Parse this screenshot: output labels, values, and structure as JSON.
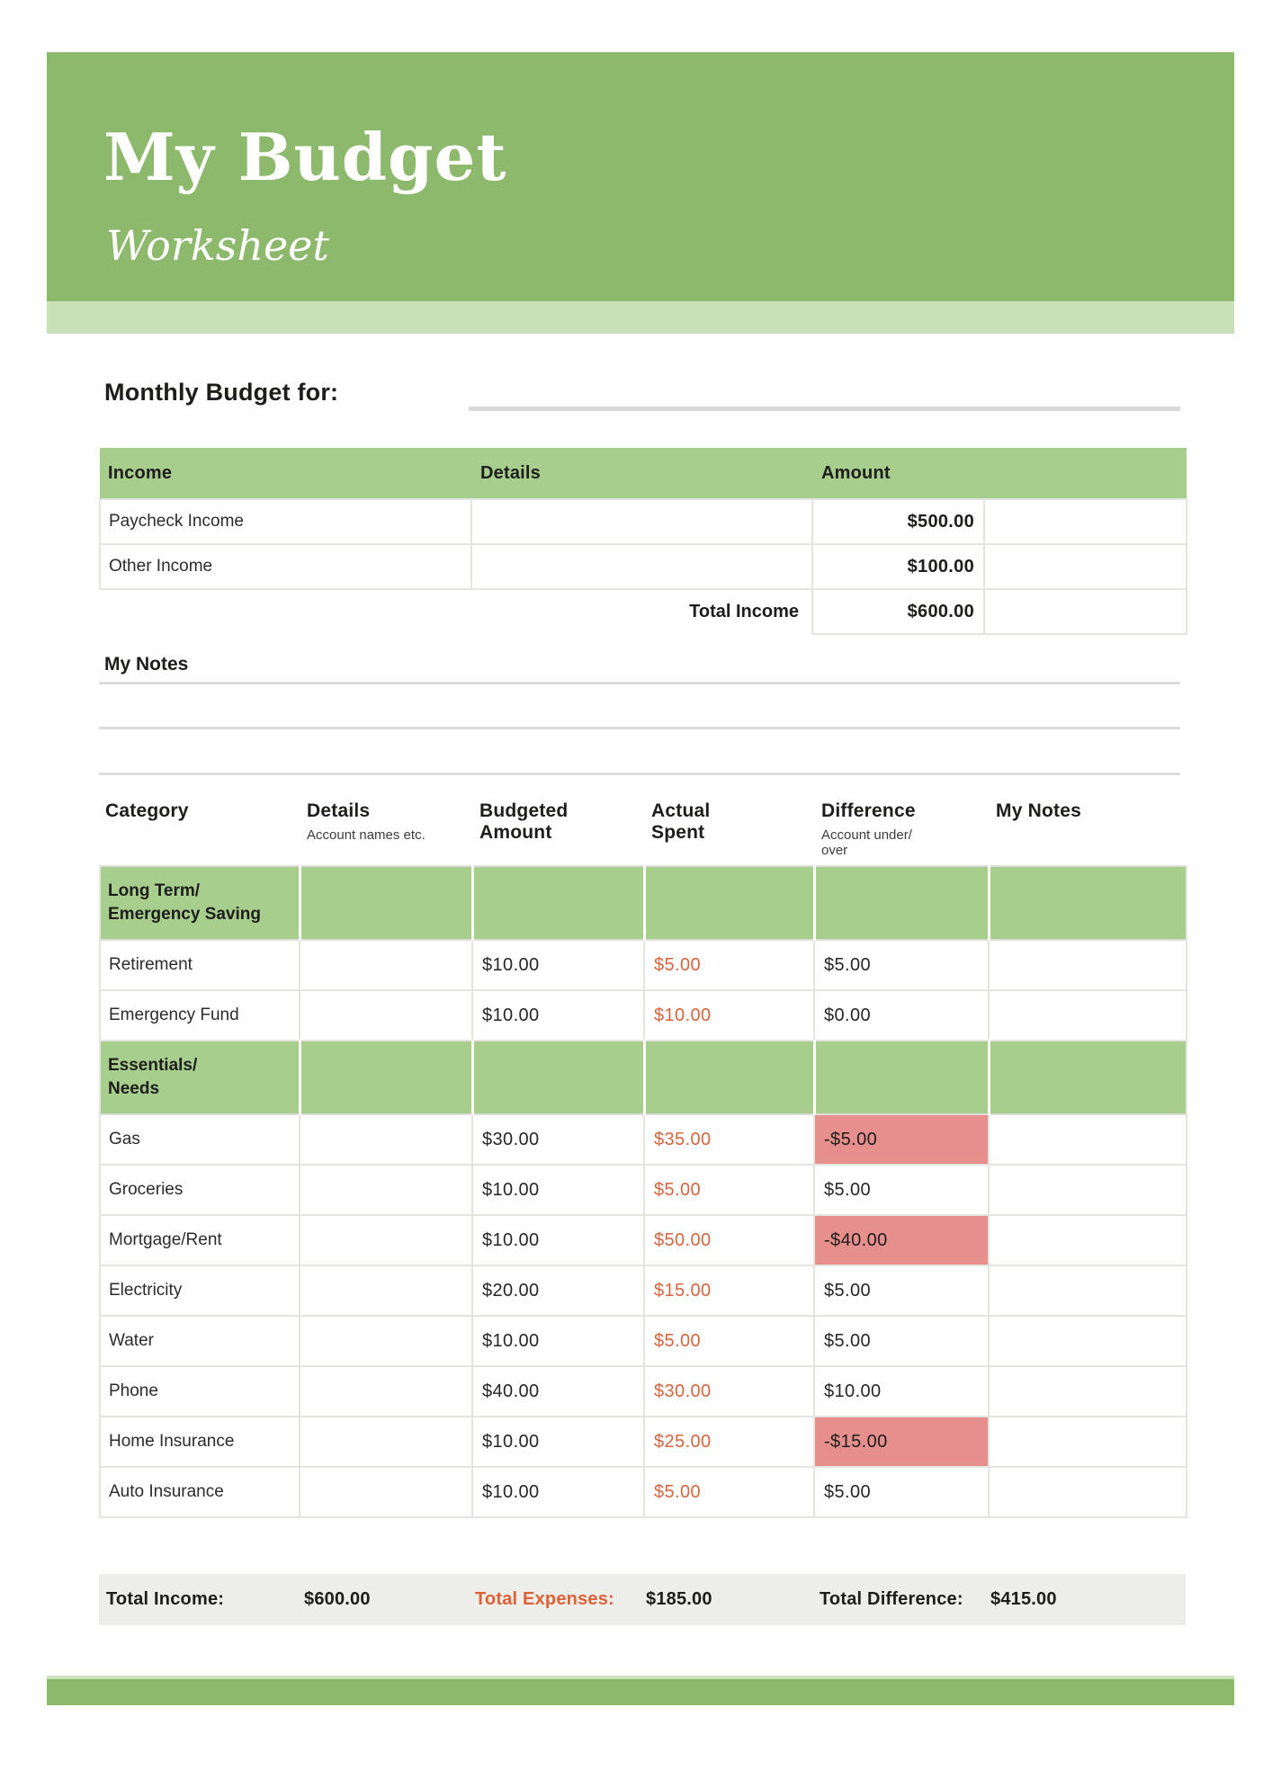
{
  "page": {
    "title": "My Budget",
    "subtitle": "Worksheet",
    "monthly_budget_label": "Monthly Budget for:"
  },
  "colors": {
    "header_green": "#8db96c",
    "light_green_strip": "#c9dfb6",
    "table_header_green": "#a8ce8e",
    "negative_pink": "#e78f8c",
    "accent_orange": "#d5643f",
    "totals_bar_gray": "#edede9"
  },
  "income_table": {
    "headers": [
      "Income",
      "Details",
      "Amount"
    ],
    "rows": [
      {
        "label": "Paycheck Income",
        "details": "",
        "amount": "$500.00"
      },
      {
        "label": "Other Income",
        "details": "",
        "amount": "$100.00"
      }
    ],
    "total_label": "Total Income",
    "total_amount": "$600.00"
  },
  "notes": {
    "label": "My Notes"
  },
  "expense_table": {
    "headers": {
      "category": "Category",
      "details": "Details",
      "details_sub": "Account names etc.",
      "budgeted": "Budgeted\nAmount",
      "actual": "Actual\nSpent",
      "difference": "Difference",
      "difference_sub": "Account under/\nover",
      "notes": "My Notes"
    },
    "sections": [
      {
        "name": "Long Term/\nEmergency Saving",
        "rows": [
          {
            "category": "Retirement",
            "details": "",
            "budgeted": "$10.00",
            "actual": "$5.00",
            "difference": "$5.00",
            "negative": false,
            "notes": ""
          },
          {
            "category": "Emergency Fund",
            "details": "",
            "budgeted": "$10.00",
            "actual": "$10.00",
            "difference": "$0.00",
            "negative": false,
            "notes": ""
          }
        ]
      },
      {
        "name": "Essentials/\nNeeds",
        "rows": [
          {
            "category": "Gas",
            "details": "",
            "budgeted": "$30.00",
            "actual": "$35.00",
            "difference": "-$5.00",
            "negative": true,
            "notes": ""
          },
          {
            "category": "Groceries",
            "details": "",
            "budgeted": "$10.00",
            "actual": "$5.00",
            "difference": "$5.00",
            "negative": false,
            "notes": ""
          },
          {
            "category": "Mortgage/Rent",
            "details": "",
            "budgeted": "$10.00",
            "actual": "$50.00",
            "difference": "-$40.00",
            "negative": true,
            "notes": ""
          },
          {
            "category": "Electricity",
            "details": "",
            "budgeted": "$20.00",
            "actual": "$15.00",
            "difference": "$5.00",
            "negative": false,
            "notes": ""
          },
          {
            "category": "Water",
            "details": "",
            "budgeted": "$10.00",
            "actual": "$5.00",
            "difference": "$5.00",
            "negative": false,
            "notes": ""
          },
          {
            "category": "Phone",
            "details": "",
            "budgeted": "$40.00",
            "actual": "$30.00",
            "difference": "$10.00",
            "negative": false,
            "notes": ""
          },
          {
            "category": "Home Insurance",
            "details": "",
            "budgeted": "$10.00",
            "actual": "$25.00",
            "difference": "-$15.00",
            "negative": true,
            "notes": ""
          },
          {
            "category": "Auto Insurance",
            "details": "",
            "budgeted": "$10.00",
            "actual": "$5.00",
            "difference": "$5.00",
            "negative": false,
            "notes": ""
          }
        ]
      }
    ]
  },
  "totals": {
    "income_label": "Total Income:",
    "income_value": "$600.00",
    "expenses_label": "Total Expenses:",
    "expenses_value": "$185.00",
    "difference_label": "Total Difference:",
    "difference_value": "$415.00"
  }
}
